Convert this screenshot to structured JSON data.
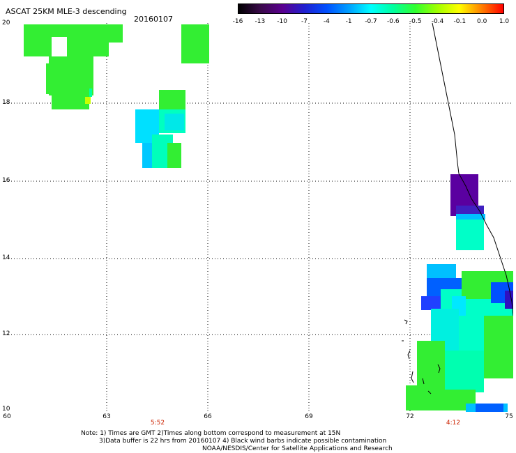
{
  "header": {
    "title": "ASCAT 25KM MLE-3 descending",
    "date": "20160107"
  },
  "colorbar": {
    "labels": [
      "-16",
      "-13",
      "-10",
      "-7",
      "-4",
      "-1",
      "-0.7",
      "-0.6",
      "-0.5",
      "-0.4",
      "-0.1",
      "0.0",
      "1.0"
    ],
    "colors": [
      "#000000",
      "#3a0a4a",
      "#5a0090",
      "#2020d0",
      "#0050ff",
      "#00a0ff",
      "#00ffff",
      "#00ffa0",
      "#30ff30",
      "#a0ff00",
      "#ffff00",
      "#ff8000",
      "#ff0000"
    ]
  },
  "axes": {
    "y_labels": [
      "20",
      "18",
      "16",
      "14",
      "12",
      "10"
    ],
    "x_labels": [
      "60",
      "63",
      "66",
      "69",
      "72",
      "75"
    ],
    "time_labels": [
      "5:52",
      "4:12"
    ]
  },
  "notes": {
    "line1": "Note: 1) Times are GMT 2)Times along bottom correspond to measurement at 15N",
    "line2": "3)Data buffer is 22 hrs from 20160107 4) Black wind barbs indicate possible contamination",
    "line3": "NOAA/NESDIS/Center for Satellite Applications and Research"
  },
  "map_data": {
    "lon_range": [
      60,
      75
    ],
    "lat_range": [
      10,
      20
    ],
    "field_colors": {
      "green": "#33ee33",
      "cyan": "#00ffff",
      "aqua": "#00e8c0",
      "blue": "#0040ff",
      "lightblue": "#00c0ff",
      "purple": "#5a00a0",
      "yellow": "#c8ff00",
      "coast": "#000000"
    }
  }
}
